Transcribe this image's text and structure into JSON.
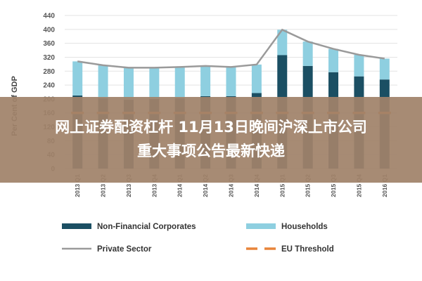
{
  "chart_data": {
    "type": "bar",
    "stacked": true,
    "ylabel": "Per Cent of GDP",
    "ylim": [
      0,
      440
    ],
    "yticks": [
      0,
      40,
      80,
      120,
      160,
      200,
      240,
      280,
      320,
      360,
      400,
      440
    ],
    "grid": true,
    "legend_position": "bottom",
    "categories": [
      "2013 Q1",
      "2013 Q2",
      "2013 Q3",
      "2013 Q4",
      "2014 Q1",
      "2014 Q2",
      "2014 Q3",
      "2014 Q4",
      "2015 Q1",
      "2015 Q2",
      "2015 Q3",
      "2015 Q4",
      "2016 Q1"
    ],
    "series": [
      {
        "name": "Non-Financial Corporates",
        "kind": "bar",
        "color": "#1b4f63",
        "values": [
          210,
          202,
          198,
          200,
          202,
          208,
          208,
          217,
          326,
          295,
          277,
          265,
          256
        ]
      },
      {
        "name": "Households",
        "kind": "bar",
        "color": "#8ecfe0",
        "values": [
          98,
          95,
          92,
          90,
          90,
          87,
          84,
          82,
          73,
          70,
          67,
          62,
          60
        ]
      },
      {
        "name": "Private Sector",
        "kind": "line",
        "color": "#9a9a9a",
        "values": [
          308,
          297,
          290,
          290,
          292,
          295,
          292,
          299,
          399,
          365,
          344,
          327,
          316
        ]
      },
      {
        "name": "EU Threshold",
        "kind": "dash",
        "color": "#e8843a",
        "values": [
          160,
          160,
          160,
          160,
          160,
          160,
          160,
          160,
          160,
          160,
          160,
          160,
          160
        ]
      }
    ]
  },
  "overlay": {
    "line1": "网上证券配资杠杆 11月13日晚间沪深上市公司",
    "line2": "重大事项公告最新快递"
  }
}
